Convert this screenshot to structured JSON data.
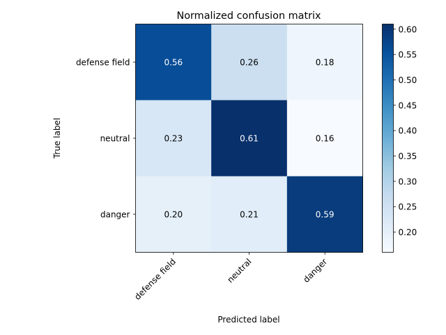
{
  "chart_data": {
    "type": "heatmap",
    "title": "Normalized confusion matrix",
    "xlabel": "Predicted label",
    "ylabel": "True label",
    "x_categories": [
      "defense field",
      "neutral",
      "danger"
    ],
    "y_categories": [
      "defense field",
      "neutral",
      "danger"
    ],
    "values": [
      [
        0.56,
        0.26,
        0.18
      ],
      [
        0.23,
        0.61,
        0.16
      ],
      [
        0.2,
        0.21,
        0.59
      ]
    ],
    "cell_labels": [
      [
        "0.56",
        "0.26",
        "0.18"
      ],
      [
        "0.23",
        "0.61",
        "0.16"
      ],
      [
        "0.20",
        "0.21",
        "0.59"
      ]
    ],
    "colormap": "Blues",
    "colorbar": {
      "range": [
        0.16,
        0.61
      ],
      "ticks": [
        0.2,
        0.25,
        0.3,
        0.35,
        0.4,
        0.45,
        0.5,
        0.55,
        0.6
      ],
      "tick_labels": [
        "0.20",
        "0.25",
        "0.30",
        "0.35",
        "0.40",
        "0.45",
        "0.50",
        "0.55",
        "0.60"
      ]
    },
    "grid": false
  }
}
